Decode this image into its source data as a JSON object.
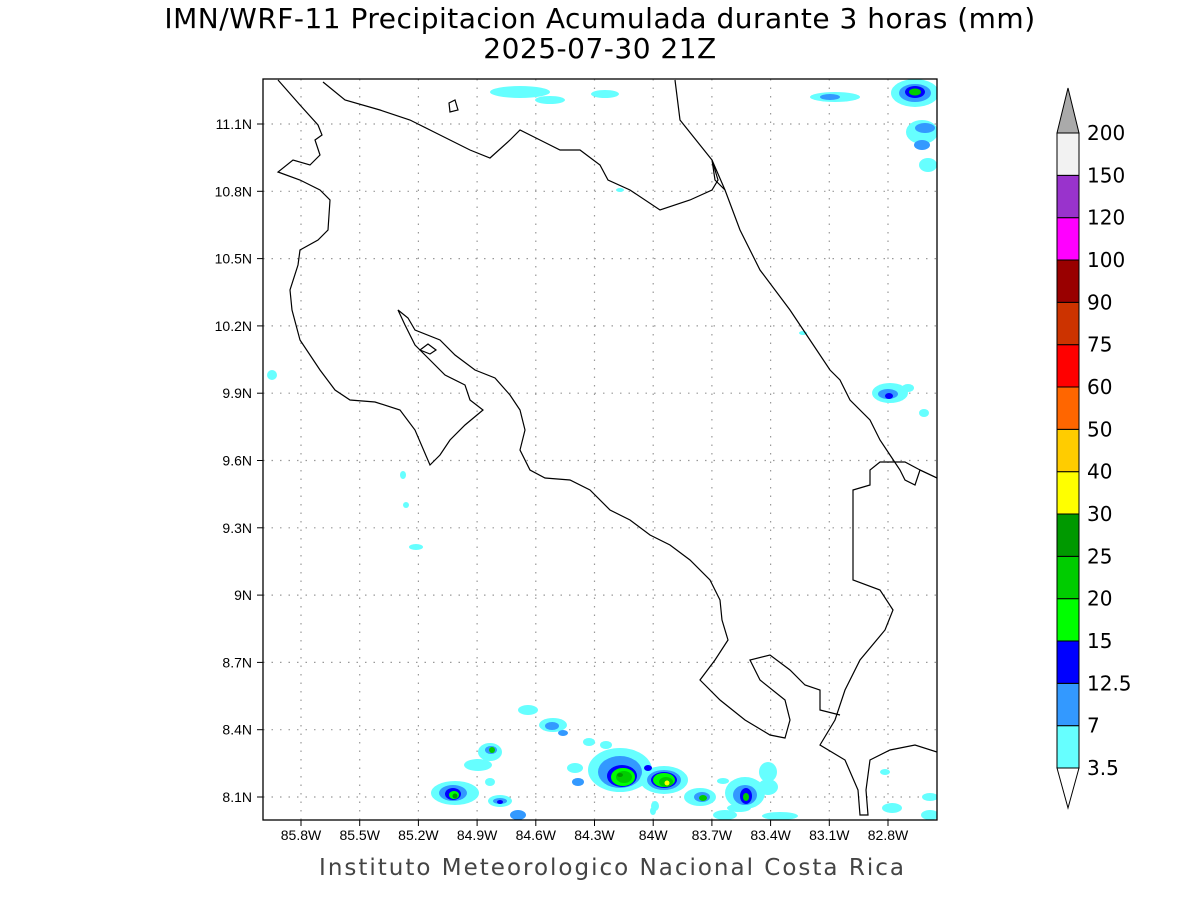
{
  "title": {
    "line1": "IMN/WRF-11 Precipitacion Acumulada durante 3 horas (mm)",
    "line2": "2025-07-30 21Z"
  },
  "footer": "Instituto Meteorologico Nacional Costa Rica",
  "axes": {
    "lat_labels": [
      "11.1N",
      "10.8N",
      "10.5N",
      "10.2N",
      "9.9N",
      "9.6N",
      "9.3N",
      "9N",
      "8.7N",
      "8.4N",
      "8.1N"
    ],
    "lon_labels": [
      "85.8W",
      "85.5W",
      "85.2W",
      "84.9W",
      "84.6W",
      "84.3W",
      "84W",
      "83.7W",
      "83.4W",
      "83.1W",
      "82.8W"
    ]
  },
  "colorbar": {
    "labels": [
      "3.5",
      "7",
      "12.5",
      "15",
      "20",
      "25",
      "30",
      "40",
      "50",
      "60",
      "75",
      "90",
      "100",
      "120",
      "150",
      "200"
    ],
    "colors": [
      "#66ffff",
      "#3399ff",
      "#0000ff",
      "#00ff00",
      "#00cc00",
      "#009900",
      "#ffff00",
      "#ffcc00",
      "#ff6600",
      "#ff0000",
      "#cc3300",
      "#990000",
      "#ff00ff",
      "#9933cc",
      "#f2f2f2"
    ],
    "over_color": "#aaaaaa",
    "under_color": "#ffffff"
  }
}
